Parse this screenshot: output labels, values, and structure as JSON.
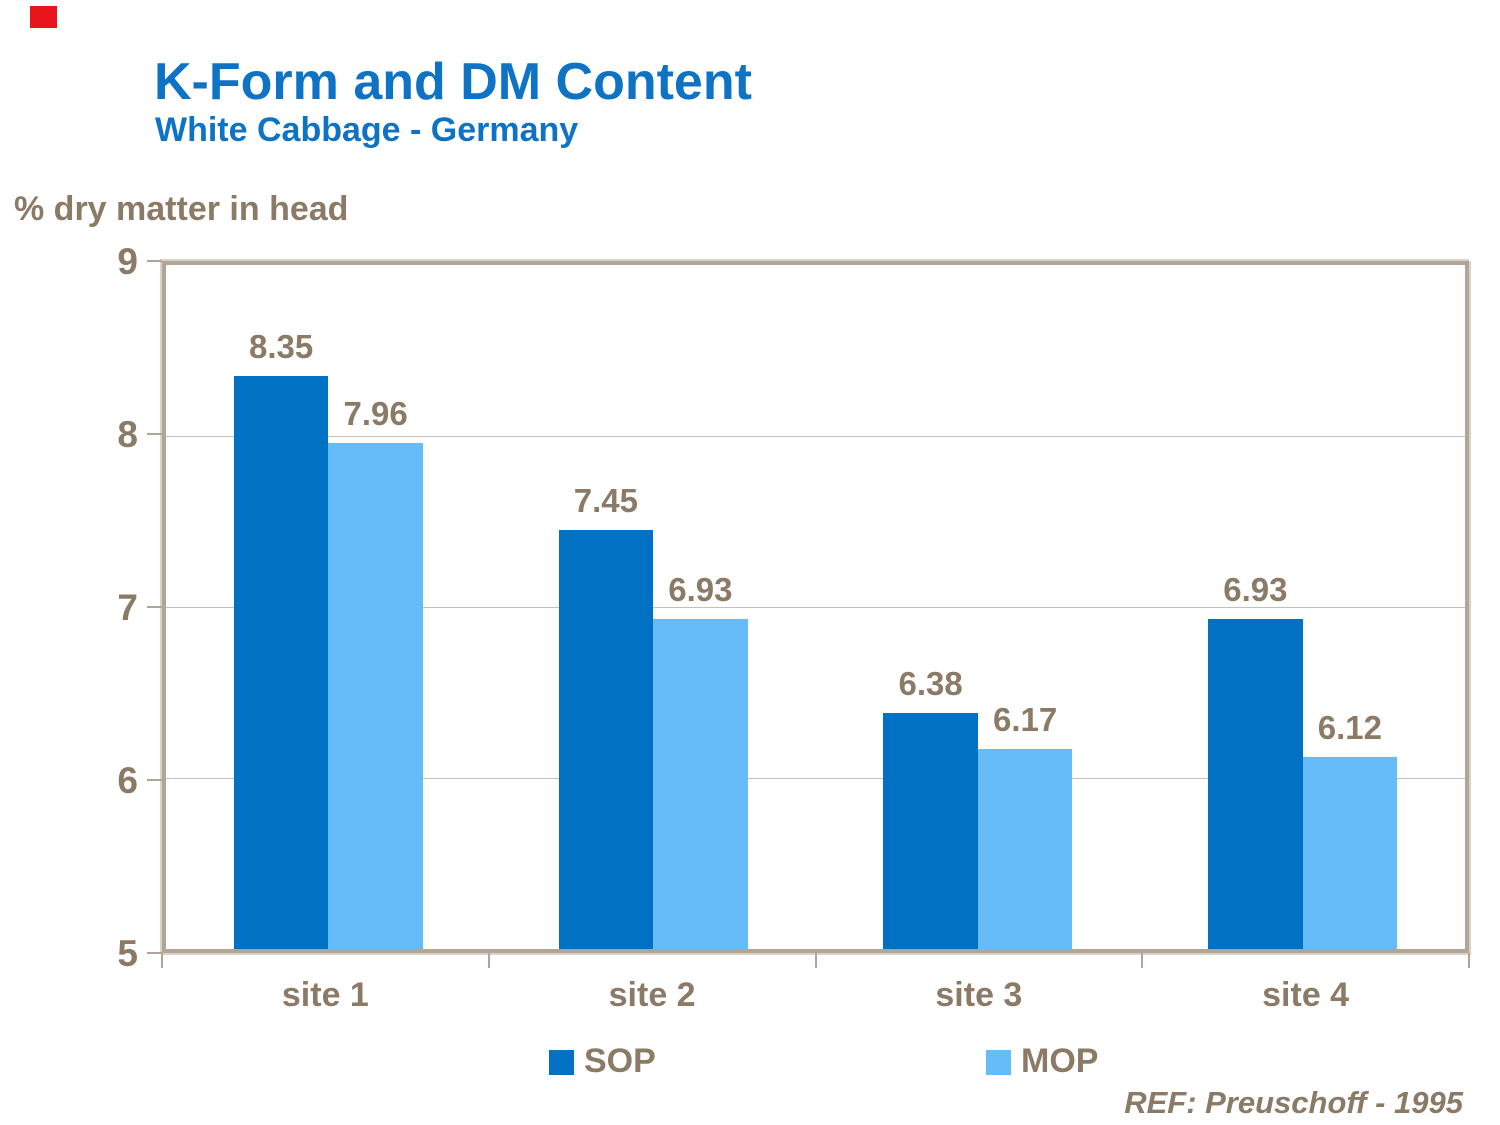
{
  "header": {
    "title": "K-Form and DM Content",
    "subtitle": "White Cabbage - Germany"
  },
  "axis_title": "% dry matter in head",
  "footer": {
    "reference": "REF: Preuschoff - 1995"
  },
  "legend": {
    "items": [
      {
        "label": "SOP",
        "color_key": "sop"
      },
      {
        "label": "MOP",
        "color_key": "mop"
      }
    ]
  },
  "colors": {
    "sop": "#0071C3",
    "mop": "#66BCF8",
    "title-blue": "#0F73C5",
    "text-brown": "#8B7A66",
    "frame-tan": "#B2A496",
    "grid-tan": "#C8BEB2",
    "marker-red": "#E8151C"
  },
  "chart_data": {
    "type": "bar",
    "title": "K-Form and DM Content",
    "subtitle": "White Cabbage - Germany",
    "ylabel": "% dry matter in head",
    "categories": [
      "site 1",
      "site 2",
      "site 3",
      "site 4"
    ],
    "series": [
      {
        "name": "SOP",
        "values": [
          8.35,
          7.45,
          6.38,
          6.93
        ]
      },
      {
        "name": "MOP",
        "values": [
          7.96,
          6.93,
          6.17,
          6.12
        ]
      }
    ],
    "ylim": [
      5,
      9
    ],
    "yticks": [
      5,
      6,
      7,
      8,
      9
    ],
    "grid": true,
    "legend_position": "bottom",
    "value_labels": true,
    "annotations": [
      "REF: Preuschoff - 1995"
    ]
  }
}
